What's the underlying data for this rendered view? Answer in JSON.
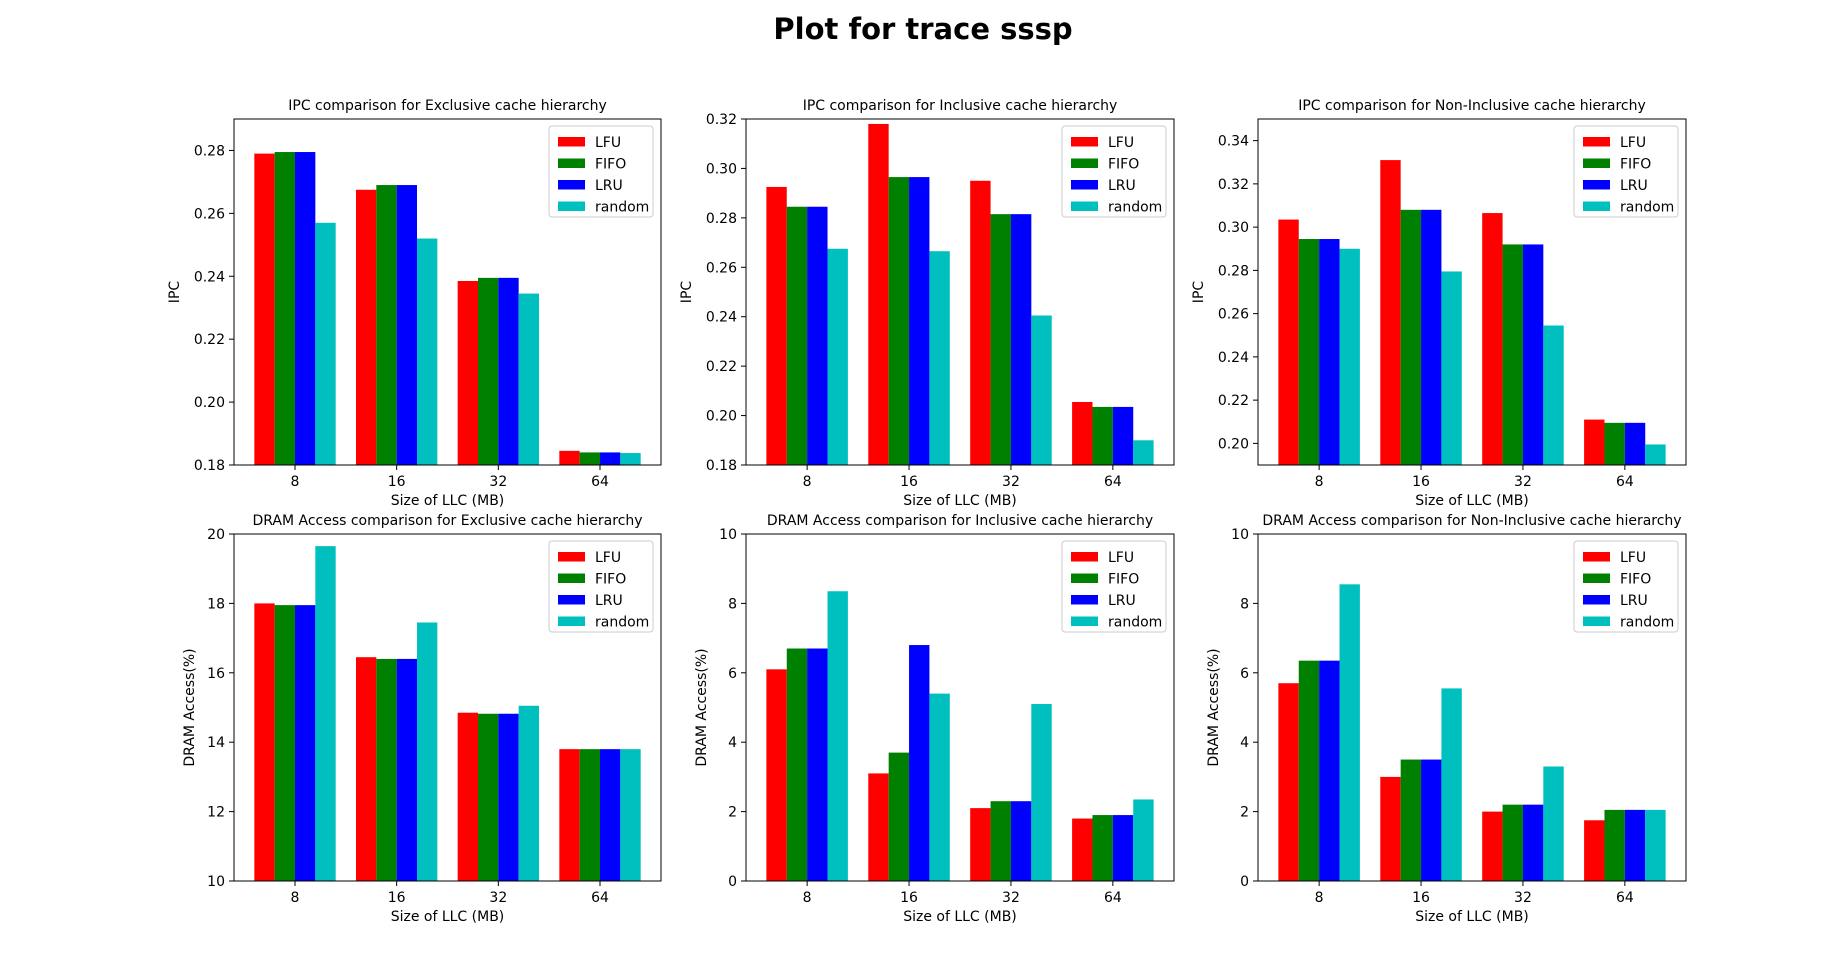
{
  "figure_title": "Plot for trace sssp",
  "colors": {
    "LFU": "#ff0000",
    "FIFO": "#008000",
    "LRU": "#0000ff",
    "random": "#00bfbf"
  },
  "chart_data": [
    {
      "type": "bar",
      "title": "IPC comparison for Exclusive cache hierarchy",
      "xlabel": "Size of LLC (MB)",
      "ylabel": "IPC",
      "categories": [
        "8",
        "16",
        "32",
        "64"
      ],
      "ylim": [
        0.18,
        0.29
      ],
      "yticks": [
        0.18,
        0.2,
        0.22,
        0.24,
        0.26,
        0.28
      ],
      "tick_decimals": 2,
      "legend": "top-right",
      "series": [
        {
          "name": "LFU",
          "values": [
            0.279,
            0.2675,
            0.2385,
            0.1845
          ]
        },
        {
          "name": "FIFO",
          "values": [
            0.2795,
            0.269,
            0.2395,
            0.184
          ]
        },
        {
          "name": "LRU",
          "values": [
            0.2795,
            0.269,
            0.2395,
            0.184
          ]
        },
        {
          "name": "random",
          "values": [
            0.257,
            0.252,
            0.2345,
            0.1838
          ]
        }
      ]
    },
    {
      "type": "bar",
      "title": "IPC comparison for Inclusive cache hierarchy",
      "xlabel": "Size of LLC (MB)",
      "ylabel": "IPC",
      "categories": [
        "8",
        "16",
        "32",
        "64"
      ],
      "ylim": [
        0.18,
        0.32
      ],
      "yticks": [
        0.18,
        0.2,
        0.22,
        0.24,
        0.26,
        0.28,
        0.3,
        0.32
      ],
      "tick_decimals": 2,
      "legend": "top-right",
      "series": [
        {
          "name": "LFU",
          "values": [
            0.2925,
            0.318,
            0.295,
            0.2055
          ]
        },
        {
          "name": "FIFO",
          "values": [
            0.2845,
            0.2965,
            0.2815,
            0.2035
          ]
        },
        {
          "name": "LRU",
          "values": [
            0.2845,
            0.2965,
            0.2815,
            0.2035
          ]
        },
        {
          "name": "random",
          "values": [
            0.2675,
            0.2665,
            0.2405,
            0.19
          ]
        }
      ]
    },
    {
      "type": "bar",
      "title": "IPC comparison for Non-Inclusive cache hierarchy",
      "xlabel": "Size of LLC (MB)",
      "ylabel": "IPC",
      "categories": [
        "8",
        "16",
        "32",
        "64"
      ],
      "ylim": [
        0.19,
        0.35
      ],
      "yticks": [
        0.2,
        0.22,
        0.24,
        0.26,
        0.28,
        0.3,
        0.32,
        0.34
      ],
      "tick_decimals": 2,
      "legend": "top-right",
      "series": [
        {
          "name": "LFU",
          "values": [
            0.3035,
            0.331,
            0.3065,
            0.211
          ]
        },
        {
          "name": "FIFO",
          "values": [
            0.2945,
            0.308,
            0.292,
            0.2095
          ]
        },
        {
          "name": "LRU",
          "values": [
            0.2945,
            0.308,
            0.292,
            0.2095
          ]
        },
        {
          "name": "random",
          "values": [
            0.29,
            0.2795,
            0.2545,
            0.1995
          ]
        }
      ]
    },
    {
      "type": "bar",
      "title": "DRAM Access comparison for Exclusive cache hierarchy",
      "xlabel": "Size of LLC (MB)",
      "ylabel": "DRAM Access(%)",
      "categories": [
        "8",
        "16",
        "32",
        "64"
      ],
      "ylim": [
        10,
        20
      ],
      "yticks": [
        10,
        12,
        14,
        16,
        18,
        20
      ],
      "tick_decimals": 0,
      "legend": "top-right",
      "series": [
        {
          "name": "LFU",
          "values": [
            18.0,
            16.45,
            14.85,
            13.8
          ]
        },
        {
          "name": "FIFO",
          "values": [
            17.95,
            16.4,
            14.82,
            13.8
          ]
        },
        {
          "name": "LRU",
          "values": [
            17.95,
            16.4,
            14.82,
            13.8
          ]
        },
        {
          "name": "random",
          "values": [
            19.65,
            17.45,
            15.05,
            13.8
          ]
        }
      ]
    },
    {
      "type": "bar",
      "title": "DRAM Access comparison for Inclusive cache hierarchy",
      "xlabel": "Size of LLC (MB)",
      "ylabel": "DRAM Access(%)",
      "categories": [
        "8",
        "16",
        "32",
        "64"
      ],
      "ylim": [
        0,
        10
      ],
      "yticks": [
        0,
        2,
        4,
        6,
        8,
        10
      ],
      "tick_decimals": 0,
      "legend": "top-right",
      "series": [
        {
          "name": "LFU",
          "values": [
            6.1,
            3.1,
            2.1,
            1.8
          ]
        },
        {
          "name": "FIFO",
          "values": [
            6.7,
            3.7,
            2.3,
            1.9
          ]
        },
        {
          "name": "LRU",
          "values": [
            6.7,
            6.8,
            2.3,
            1.9
          ]
        },
        {
          "name": "random",
          "values": [
            8.35,
            5.4,
            5.1,
            2.35
          ]
        }
      ]
    },
    {
      "type": "bar",
      "title": "DRAM Access comparison for Non-Inclusive cache hierarchy",
      "xlabel": "Size of LLC (MB)",
      "ylabel": "DRAM Access(%)",
      "categories": [
        "8",
        "16",
        "32",
        "64"
      ],
      "ylim": [
        0,
        10
      ],
      "yticks": [
        0,
        2,
        4,
        6,
        8,
        10
      ],
      "tick_decimals": 0,
      "legend": "top-right",
      "series": [
        {
          "name": "LFU",
          "values": [
            5.7,
            3.0,
            2.0,
            1.75
          ]
        },
        {
          "name": "FIFO",
          "values": [
            6.35,
            3.5,
            2.2,
            2.05
          ]
        },
        {
          "name": "LRU",
          "values": [
            6.35,
            3.5,
            2.2,
            2.05
          ]
        },
        {
          "name": "random",
          "values": [
            8.55,
            5.55,
            3.3,
            2.05
          ]
        }
      ]
    }
  ]
}
